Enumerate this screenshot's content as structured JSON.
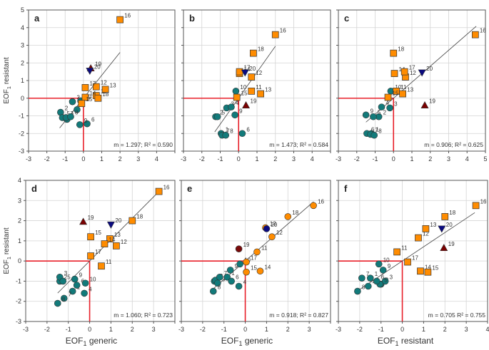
{
  "chart_data": [
    {
      "type": "scatter",
      "panel": "a",
      "xlabel": "",
      "ylabel": "EOF1 resistant",
      "xlim": [
        -3,
        5
      ],
      "ylim": [
        -3,
        5
      ],
      "xticks": [
        "-3",
        "-2",
        "-1",
        "0",
        "1",
        "2",
        "3",
        "4"
      ],
      "yticks": [
        "5",
        "4",
        "3",
        "2",
        "1",
        "0",
        "-1",
        "-2",
        "-3"
      ],
      "regression": {
        "m": 1.297,
        "r2": 0.59,
        "text": "m = 1.297; R² = 0.590",
        "x_range": [
          -1.3,
          2.0
        ]
      },
      "points": [
        {
          "id": "1",
          "x": -0.9,
          "y": -1.2,
          "group": "circle"
        },
        {
          "id": "2",
          "x": -1.25,
          "y": -0.8,
          "group": "circle"
        },
        {
          "id": "3",
          "x": -0.6,
          "y": -0.2,
          "group": "circle"
        },
        {
          "id": "4",
          "x": -0.35,
          "y": -0.65,
          "group": "circle"
        },
        {
          "id": "5",
          "x": -1.15,
          "y": -1.1,
          "group": "circle"
        },
        {
          "id": "6",
          "x": 0.2,
          "y": -1.45,
          "group": "circle"
        },
        {
          "id": "7",
          "x": -0.95,
          "y": -1.1,
          "group": "circle"
        },
        {
          "id": "8",
          "x": -0.7,
          "y": -1.05,
          "group": "circle"
        },
        {
          "id": "9",
          "x": -0.2,
          "y": -1.5,
          "group": "circle"
        },
        {
          "id": "10",
          "x": -0.15,
          "y": -0.15,
          "group": "circle"
        },
        {
          "id": "11",
          "x": 0.7,
          "y": 0.15,
          "group": "square"
        },
        {
          "id": "12",
          "x": 0.7,
          "y": 0.65,
          "group": "square"
        },
        {
          "id": "13",
          "x": 1.2,
          "y": 0.5,
          "group": "square"
        },
        {
          "id": "14",
          "x": 0.1,
          "y": 0.05,
          "group": "square"
        },
        {
          "id": "15",
          "x": -0.1,
          "y": -0.3,
          "group": "square"
        },
        {
          "id": "16",
          "x": 2.0,
          "y": 4.45,
          "group": "square"
        },
        {
          "id": "17",
          "x": 0.1,
          "y": 0.6,
          "group": "square"
        },
        {
          "id": "18",
          "x": 0.8,
          "y": 0.0,
          "group": "square"
        },
        {
          "id": "19",
          "x": 0.4,
          "y": 1.7,
          "group": "triangle-up"
        },
        {
          "id": "20",
          "x": 0.35,
          "y": 1.55,
          "group": "triangle-down"
        }
      ]
    },
    {
      "type": "scatter",
      "panel": "b",
      "xlabel": "",
      "ylabel": "",
      "xlim": [
        -3,
        5
      ],
      "ylim": [
        -3,
        5
      ],
      "xticks": [
        "-3",
        "-2",
        "-1",
        "0",
        "1",
        "2",
        "3",
        "4"
      ],
      "regression": {
        "m": 1.473,
        "r2": 0.584,
        "text": "m = 1.473; R² = 0.584",
        "x_range": [
          -1.3,
          2.0
        ]
      },
      "points": [
        {
          "id": "1",
          "x": -0.95,
          "y": -2.0,
          "group": "circle"
        },
        {
          "id": "2",
          "x": -1.25,
          "y": -1.05,
          "group": "circle"
        },
        {
          "id": "3",
          "x": -0.65,
          "y": -0.55,
          "group": "circle"
        },
        {
          "id": "4",
          "x": -0.4,
          "y": -0.5,
          "group": "circle"
        },
        {
          "id": "5",
          "x": -1.15,
          "y": -1.05,
          "group": "circle"
        },
        {
          "id": "6",
          "x": 0.2,
          "y": -2.0,
          "group": "circle"
        },
        {
          "id": "7",
          "x": -0.9,
          "y": -2.1,
          "group": "circle"
        },
        {
          "id": "8",
          "x": -0.7,
          "y": -2.1,
          "group": "circle"
        },
        {
          "id": "9",
          "x": -0.2,
          "y": -0.95,
          "group": "circle"
        },
        {
          "id": "10",
          "x": -0.15,
          "y": 0.4,
          "group": "circle"
        },
        {
          "id": "11",
          "x": 0.7,
          "y": 0.4,
          "group": "square"
        },
        {
          "id": "12",
          "x": 0.7,
          "y": 1.2,
          "group": "square"
        },
        {
          "id": "13",
          "x": 1.2,
          "y": 0.25,
          "group": "square"
        },
        {
          "id": "14",
          "x": 0.05,
          "y": 1.4,
          "group": "square"
        },
        {
          "id": "15",
          "x": -0.1,
          "y": 0.05,
          "group": "square"
        },
        {
          "id": "16",
          "x": 2.0,
          "y": 3.6,
          "group": "square"
        },
        {
          "id": "17",
          "x": 0.05,
          "y": 1.5,
          "group": "square"
        },
        {
          "id": "18",
          "x": 0.8,
          "y": 2.55,
          "group": "square"
        },
        {
          "id": "19",
          "x": 0.4,
          "y": -0.4,
          "group": "triangle-up"
        },
        {
          "id": "20",
          "x": 0.35,
          "y": 1.45,
          "group": "triangle-down"
        }
      ]
    },
    {
      "type": "scatter",
      "panel": "c",
      "xlabel": "",
      "ylabel": "",
      "xlim": [
        -3,
        5
      ],
      "ylim": [
        -3,
        5
      ],
      "xticks": [
        "-3",
        "-2",
        "-1",
        "0",
        "1",
        "2",
        "3",
        "4",
        "5"
      ],
      "regression": {
        "m": 0.906,
        "r2": 0.625,
        "text": "m = 0.906; R² = 0.625",
        "x_range": [
          -1.5,
          4.5
        ]
      },
      "points": [
        {
          "id": "1",
          "x": -1.2,
          "y": -2.0,
          "group": "circle"
        },
        {
          "id": "2",
          "x": -0.8,
          "y": -1.05,
          "group": "circle"
        },
        {
          "id": "3",
          "x": -0.2,
          "y": -0.55,
          "group": "circle"
        },
        {
          "id": "4",
          "x": -0.65,
          "y": -0.5,
          "group": "circle"
        },
        {
          "id": "5",
          "x": -1.1,
          "y": -1.05,
          "group": "circle"
        },
        {
          "id": "6",
          "x": -1.45,
          "y": -2.0,
          "group": "circle"
        },
        {
          "id": "7",
          "x": -1.25,
          "y": -2.05,
          "group": "circle"
        },
        {
          "id": "8",
          "x": -1.05,
          "y": -2.1,
          "group": "circle"
        },
        {
          "id": "9",
          "x": -1.5,
          "y": -0.95,
          "group": "circle"
        },
        {
          "id": "10",
          "x": -0.15,
          "y": 0.4,
          "group": "circle"
        },
        {
          "id": "11",
          "x": 0.15,
          "y": 0.4,
          "group": "square"
        },
        {
          "id": "12",
          "x": 0.65,
          "y": 1.2,
          "group": "square"
        },
        {
          "id": "13",
          "x": 0.5,
          "y": 0.25,
          "group": "square"
        },
        {
          "id": "14",
          "x": 0.05,
          "y": 1.4,
          "group": "square"
        },
        {
          "id": "15",
          "x": -0.3,
          "y": 0.05,
          "group": "square"
        },
        {
          "id": "16",
          "x": 4.45,
          "y": 3.6,
          "group": "square"
        },
        {
          "id": "17",
          "x": 0.6,
          "y": 1.5,
          "group": "square"
        },
        {
          "id": "18",
          "x": 0.0,
          "y": 2.55,
          "group": "square"
        },
        {
          "id": "19",
          "x": 1.7,
          "y": -0.4,
          "group": "triangle-up"
        },
        {
          "id": "20",
          "x": 1.55,
          "y": 1.45,
          "group": "triangle-down"
        }
      ]
    },
    {
      "type": "scatter",
      "panel": "d",
      "xlabel": "EOF1 generic",
      "ylabel": "EOF1 resistant",
      "xlim": [
        -3,
        4
      ],
      "ylim": [
        -3,
        4
      ],
      "xticks": [
        "-3",
        "-2",
        "-1",
        "0",
        "1",
        "2",
        "3"
      ],
      "yticks": [
        "4",
        "3",
        "2",
        "1",
        "0",
        "-1",
        "-2",
        "-3"
      ],
      "regression": {
        "m": 1.06,
        "r2": 0.723,
        "text": "m = 1.060; R² = 0.723",
        "x_range": [
          -1.5,
          3.3
        ]
      },
      "points": [
        {
          "id": "1",
          "x": -0.8,
          "y": -1.5,
          "group": "circle"
        },
        {
          "id": "2",
          "x": -1.4,
          "y": -1.0,
          "group": "circle"
        },
        {
          "id": "3",
          "x": -1.4,
          "y": -0.8,
          "group": "circle"
        },
        {
          "id": "4",
          "x": -0.25,
          "y": -1.6,
          "group": "circle"
        },
        {
          "id": "5",
          "x": -1.25,
          "y": -1.0,
          "group": "circle"
        },
        {
          "id": "6",
          "x": -0.6,
          "y": -1.2,
          "group": "circle"
        },
        {
          "id": "7",
          "x": -1.2,
          "y": -1.85,
          "group": "circle"
        },
        {
          "id": "8",
          "x": -1.5,
          "y": -2.1,
          "group": "circle"
        },
        {
          "id": "9",
          "x": -0.7,
          "y": -0.9,
          "group": "circle"
        },
        {
          "id": "10",
          "x": -0.2,
          "y": -1.1,
          "group": "circle"
        },
        {
          "id": "11",
          "x": 0.55,
          "y": -0.25,
          "group": "square"
        },
        {
          "id": "12",
          "x": 1.25,
          "y": 0.75,
          "group": "square"
        },
        {
          "id": "13",
          "x": 0.95,
          "y": 1.1,
          "group": "square"
        },
        {
          "id": "14",
          "x": 0.7,
          "y": 0.85,
          "group": "square"
        },
        {
          "id": "15",
          "x": 0.05,
          "y": 1.2,
          "group": "square"
        },
        {
          "id": "16",
          "x": 3.25,
          "y": 3.45,
          "group": "square"
        },
        {
          "id": "17",
          "x": 0.05,
          "y": 0.25,
          "group": "square"
        },
        {
          "id": "18",
          "x": 2.0,
          "y": 2.0,
          "group": "square"
        },
        {
          "id": "19",
          "x": -0.3,
          "y": 1.95,
          "group": "triangle-up"
        },
        {
          "id": "20",
          "x": 1.0,
          "y": 1.8,
          "group": "triangle-down"
        }
      ]
    },
    {
      "type": "scatter",
      "panel": "e",
      "xlabel": "EOF1 generic",
      "ylabel": "",
      "xlim": [
        -3,
        4
      ],
      "ylim": [
        -3,
        4
      ],
      "xticks": [
        "-3",
        "-2",
        "-1",
        "0",
        "1",
        "2",
        "3"
      ],
      "regression": {
        "m": 0.918,
        "r2": 0.827,
        "text": "m = 0.918; R² = 0.827",
        "x_range": [
          -1.5,
          3.2
        ]
      },
      "points": [
        {
          "id": "1",
          "x": -0.85,
          "y": -0.8,
          "group": "circle"
        },
        {
          "id": "2",
          "x": -1.45,
          "y": -1.0,
          "group": "circle"
        },
        {
          "id": "3",
          "x": -1.4,
          "y": -0.95,
          "group": "circle"
        },
        {
          "id": "4",
          "x": -0.3,
          "y": -1.25,
          "group": "circle"
        },
        {
          "id": "5",
          "x": -1.3,
          "y": -1.1,
          "group": "circle"
        },
        {
          "id": "6",
          "x": -0.65,
          "y": -1.0,
          "group": "circle"
        },
        {
          "id": "7",
          "x": -1.2,
          "y": -0.8,
          "group": "circle"
        },
        {
          "id": "8",
          "x": -1.5,
          "y": -1.5,
          "group": "circle"
        },
        {
          "id": "9",
          "x": -0.7,
          "y": -0.45,
          "group": "circle"
        },
        {
          "id": "10",
          "x": -0.25,
          "y": -0.15,
          "group": "circle"
        },
        {
          "id": "11",
          "x": 0.55,
          "y": 0.45,
          "group": "circle-orange"
        },
        {
          "id": "12",
          "x": 1.25,
          "y": 1.2,
          "group": "circle-orange"
        },
        {
          "id": "13",
          "x": 0.95,
          "y": 1.65,
          "group": "circle-orange"
        },
        {
          "id": "14",
          "x": 0.7,
          "y": -0.5,
          "group": "circle-orange"
        },
        {
          "id": "15",
          "x": 0.05,
          "y": -0.55,
          "group": "circle-orange"
        },
        {
          "id": "16",
          "x": 3.2,
          "y": 2.75,
          "group": "circle-orange"
        },
        {
          "id": "17",
          "x": 0.05,
          "y": -0.05,
          "group": "circle-orange"
        },
        {
          "id": "18",
          "x": 2.0,
          "y": 2.2,
          "group": "circle-orange"
        },
        {
          "id": "19",
          "x": -0.3,
          "y": 0.6,
          "group": "circle-darkred"
        },
        {
          "id": "20",
          "x": 1.0,
          "y": 1.6,
          "group": "circle-navy"
        }
      ]
    },
    {
      "type": "scatter",
      "panel": "f",
      "xlabel": "EOF1 resistant",
      "ylabel": "",
      "xlim": [
        -3,
        4
      ],
      "ylim": [
        -3,
        4
      ],
      "xticks": [
        "-3",
        "-2",
        "-1",
        "0",
        "1",
        "2",
        "3",
        "4"
      ],
      "regression": {
        "m": 0.705,
        "r2": 0.755,
        "text": "m = 0.705 R² = 0.755",
        "x_range": [
          -2.0,
          3.4
        ]
      },
      "points": [
        {
          "id": "1",
          "x": -1.5,
          "y": -0.85,
          "group": "circle"
        },
        {
          "id": "2",
          "x": -1.0,
          "y": -1.15,
          "group": "circle"
        },
        {
          "id": "3",
          "x": -0.8,
          "y": -1.0,
          "group": "circle"
        },
        {
          "id": "4",
          "x": -1.6,
          "y": -1.25,
          "group": "circle"
        },
        {
          "id": "5",
          "x": -1.05,
          "y": -1.15,
          "group": "circle"
        },
        {
          "id": "6",
          "x": -1.2,
          "y": -1.0,
          "group": "circle"
        },
        {
          "id": "7",
          "x": -1.9,
          "y": -0.85,
          "group": "circle"
        },
        {
          "id": "8",
          "x": -2.1,
          "y": -1.5,
          "group": "circle"
        },
        {
          "id": "9",
          "x": -0.9,
          "y": -0.45,
          "group": "circle"
        },
        {
          "id": "10",
          "x": -1.1,
          "y": -0.15,
          "group": "circle"
        },
        {
          "id": "11",
          "x": -0.25,
          "y": 0.45,
          "group": "square"
        },
        {
          "id": "12",
          "x": 0.75,
          "y": 1.15,
          "group": "square"
        },
        {
          "id": "13",
          "x": 1.1,
          "y": 1.6,
          "group": "square"
        },
        {
          "id": "14",
          "x": 0.85,
          "y": -0.5,
          "group": "square"
        },
        {
          "id": "15",
          "x": 1.2,
          "y": -0.55,
          "group": "square"
        },
        {
          "id": "16",
          "x": 3.45,
          "y": 2.75,
          "group": "square"
        },
        {
          "id": "17",
          "x": 0.25,
          "y": -0.05,
          "group": "square"
        },
        {
          "id": "18",
          "x": 2.0,
          "y": 2.2,
          "group": "square"
        },
        {
          "id": "19",
          "x": 1.95,
          "y": 0.65,
          "group": "triangle-up"
        },
        {
          "id": "20",
          "x": 1.85,
          "y": 1.6,
          "group": "triangle-down"
        }
      ]
    }
  ],
  "colors": {
    "circle": "#127a7a",
    "square": "#ff8c00",
    "circle-orange": "#ff8c00",
    "triangle-up": "#7a0000",
    "circle-darkred": "#7a0a0a",
    "triangle-down": "#0a0a80",
    "circle-navy": "#0a0a80",
    "crosshair": "#e8202a",
    "grid": "#d4d4d4",
    "axis": "#555555"
  },
  "labels": {
    "ylabel_top": "EOF1 resistant",
    "ylabel_bottom": "EOF1 resistant",
    "xlabel_d": "EOF1 generic",
    "xlabel_e": "EOF1 generic",
    "xlabel_f": "EOF1 resistant"
  }
}
